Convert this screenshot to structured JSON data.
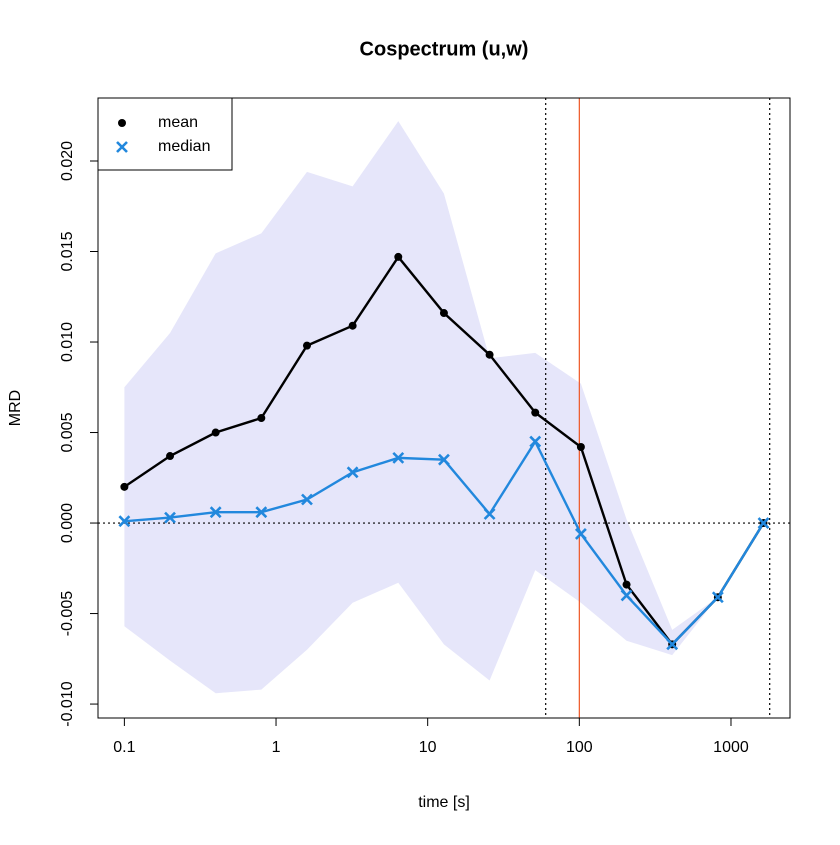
{
  "chart_data": {
    "type": "line",
    "title": "Cospectrum (u,w)",
    "x_label": "time [s]",
    "y_label": "MRD",
    "x": [
      0.1,
      0.2,
      0.4,
      0.8,
      1.6,
      3.2,
      6.4,
      12.8,
      25.6,
      51.2,
      102.4,
      204.8,
      409.6,
      819.2,
      1638.4
    ],
    "series": [
      {
        "name": "mean",
        "color": "#000000",
        "marker": "circle",
        "values": [
          0.002,
          0.0037,
          0.005,
          0.0058,
          0.0098,
          0.0109,
          0.0147,
          0.0116,
          0.0093,
          0.0061,
          0.0042,
          -0.0034,
          -0.0067,
          -0.0041,
          0.0
        ]
      },
      {
        "name": "median",
        "color": "#2288dd",
        "marker": "x",
        "values": [
          0.0001,
          0.0003,
          0.0006,
          0.0006,
          0.0013,
          0.0028,
          0.0036,
          0.0035,
          0.0005,
          0.0045,
          -0.0006,
          -0.004,
          -0.0067,
          -0.0041,
          0.0
        ]
      }
    ],
    "band": {
      "color": "#e6e6fa",
      "upper": [
        0.0075,
        0.0105,
        0.0149,
        0.016,
        0.0194,
        0.0186,
        0.0222,
        0.0182,
        0.0091,
        0.0094,
        0.0077,
        0.0002,
        -0.0059,
        -0.0041,
        0.0
      ],
      "lower": [
        -0.0057,
        -0.0076,
        -0.0094,
        -0.0092,
        -0.007,
        -0.0044,
        -0.0033,
        -0.0067,
        -0.0087,
        -0.0026,
        -0.0044,
        -0.0065,
        -0.0073,
        -0.0041,
        0.0
      ]
    },
    "vlines": [
      {
        "value": 60,
        "color": "#000000",
        "dash": "dotted"
      },
      {
        "value": 100,
        "color": "#ee5522",
        "dash": "solid"
      },
      {
        "value": 1800,
        "color": "#000000",
        "dash": "dotted"
      }
    ],
    "hlines": [
      {
        "value": 0,
        "color": "#000000",
        "dash": "dotted"
      }
    ],
    "xscale": "log",
    "xlim": [
      0.067,
      2450
    ],
    "xticks": [
      0.1,
      1,
      10,
      100,
      1000
    ],
    "ylim": [
      -0.01077,
      0.02348
    ],
    "yticks": [
      {
        "value": -0.01,
        "label": "-0.010"
      },
      {
        "value": -0.005,
        "label": "-0.005"
      },
      {
        "value": 0,
        "label": "0.000"
      },
      {
        "value": 0.005,
        "label": "0.005"
      },
      {
        "value": 0.01,
        "label": "0.010"
      },
      {
        "value": 0.015,
        "label": "0.015"
      },
      {
        "value": 0.02,
        "label": "0.020"
      }
    ],
    "legend": "top-left"
  }
}
